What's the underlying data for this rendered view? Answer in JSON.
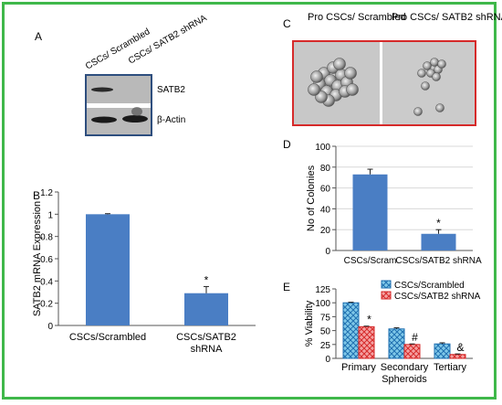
{
  "colors": {
    "frame": "#3fb84a",
    "bar": "#4a7ec4",
    "red": "#d62a2a",
    "blot_border": "#2e4e7e"
  },
  "panel_labels": {
    "a": "A",
    "b": "B",
    "c": "C",
    "d": "D",
    "e": "E"
  },
  "panel_a": {
    "lanes": [
      "CSCs/ Scrambled",
      "CSCs/ SATB2 shRNA"
    ],
    "bands": [
      "SATB2",
      "β-Actin"
    ]
  },
  "panel_c": {
    "labels": [
      "Pro CSCs/ Scrambled",
      "Pro CSCs/ SATB2 shRNA"
    ]
  },
  "chart_data": [
    {
      "id": "B",
      "type": "bar",
      "categories": [
        "CSCs/Scrambled",
        "CSCs/SATB2 shRNA"
      ],
      "category_lines": [
        [
          "CSCs/Scrambled"
        ],
        [
          "CSCs/SATB2",
          "shRNA"
        ]
      ],
      "values": [
        1.0,
        0.29
      ],
      "errors": [
        0.005,
        0.06
      ],
      "annotations": [
        "",
        "*"
      ],
      "ylabel": "SATB2 mRNA Expression",
      "ylim": [
        0,
        1.2
      ],
      "yticks": [
        0,
        0.2,
        0.4,
        0.6,
        0.8,
        1,
        1.2
      ],
      "ytick_labels": [
        "0",
        "0.2",
        "0.4",
        "0.6",
        "0.8",
        "1",
        "1.2"
      ]
    },
    {
      "id": "D",
      "type": "bar",
      "categories": [
        "CSCs/Scram",
        "CSCs/SATB2 shRNA"
      ],
      "values": [
        73,
        16
      ],
      "errors": [
        5,
        4
      ],
      "annotations": [
        "",
        "*"
      ],
      "ylabel": "No of Colonies",
      "ylim": [
        0,
        100
      ],
      "yticks": [
        0,
        20,
        40,
        60,
        80,
        100
      ],
      "ytick_labels": [
        "0",
        "20",
        "40",
        "60",
        "80",
        "100"
      ]
    },
    {
      "id": "E",
      "type": "bar",
      "categories": [
        "Primary",
        "Secondary Spheroids",
        "Tertiary"
      ],
      "category_lines": [
        [
          "Primary"
        ],
        [
          "Secondary",
          "Spheroids"
        ],
        [
          "Tertiary"
        ]
      ],
      "series": [
        {
          "name": "CSCs/Scrambled",
          "values": [
            100,
            53,
            26
          ],
          "errors": [
            1,
            2,
            2
          ],
          "annotations": [
            "",
            "",
            ""
          ]
        },
        {
          "name": "CSCs/SATB2 shRNA",
          "values": [
            57,
            25,
            7
          ],
          "errors": [
            1,
            1,
            1
          ],
          "annotations": [
            "*",
            "#",
            "&"
          ]
        }
      ],
      "ylabel": "% Viability",
      "ylim": [
        0,
        125
      ],
      "yticks": [
        0,
        25,
        50,
        75,
        100,
        125
      ],
      "ytick_labels": [
        "0",
        "25",
        "50",
        "75",
        "100",
        "125"
      ],
      "legend": "top-right"
    }
  ]
}
